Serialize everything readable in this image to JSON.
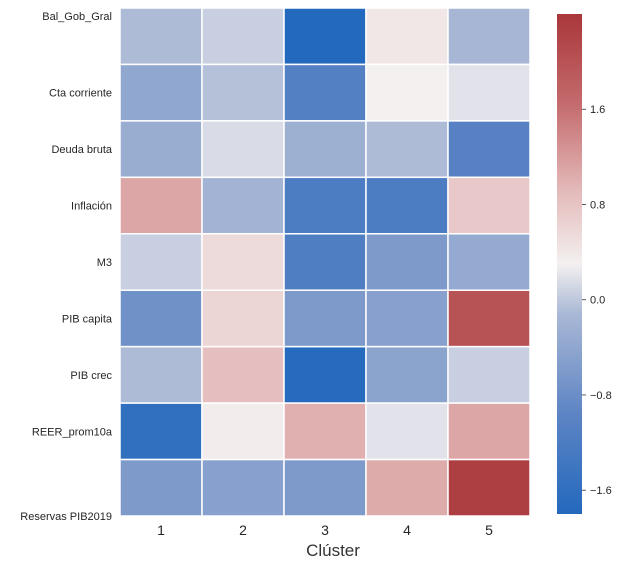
{
  "chart_data": {
    "type": "heatmap",
    "title": "",
    "xlabel": "Clúster",
    "ylabel": "",
    "x_categories": [
      "1",
      "2",
      "3",
      "4",
      "5"
    ],
    "y_categories": [
      "Bal_Gob_Gral",
      "Cta corriente",
      "Deuda bruta",
      "Inflación",
      "M3",
      "PIB capita",
      "PIB crec",
      "REER_prom10a",
      "Reservas_PIB2019"
    ],
    "y_tick_labels_displayed": [
      "Bal_Gob_Gral",
      "Cta corriente",
      "Deuda bruta",
      "Inflación",
      "M3",
      "PIB capita",
      "PIB crec",
      "REER_prom10a",
      "Reservas  PIB2019"
    ],
    "values": [
      [
        -0.1,
        0.05,
        -2.0,
        0.4,
        -0.15
      ],
      [
        -0.4,
        -0.05,
        -1.1,
        0.3,
        0.2
      ],
      [
        -0.3,
        0.15,
        -0.25,
        -0.1,
        -1.05
      ],
      [
        1.1,
        -0.2,
        -1.2,
        -1.2,
        0.75
      ],
      [
        0.05,
        0.55,
        -1.15,
        -0.6,
        -0.35
      ],
      [
        -0.75,
        0.6,
        -0.6,
        -0.5,
        2.0
      ],
      [
        -0.1,
        0.85,
        -1.75,
        -0.45,
        0.05
      ],
      [
        -1.6,
        0.35,
        1.0,
        0.2,
        1.1
      ],
      [
        -0.6,
        -0.5,
        -0.6,
        1.05,
        2.3
      ]
    ],
    "colorbar": {
      "min": -1.8,
      "max": 2.4,
      "ticks": [
        -1.6,
        -0.8,
        0.0,
        0.8,
        1.6
      ],
      "tick_labels": [
        "−1.6",
        "−0.8",
        "0.0",
        "0.8",
        "1.6"
      ]
    },
    "colormap": "vlag (blue-white-red)",
    "colors": {
      "low": "#2369bd",
      "mid": "#f4f0f0",
      "high": "#a9373b"
    },
    "grid": false,
    "cell_border_color": "#ffffff"
  }
}
